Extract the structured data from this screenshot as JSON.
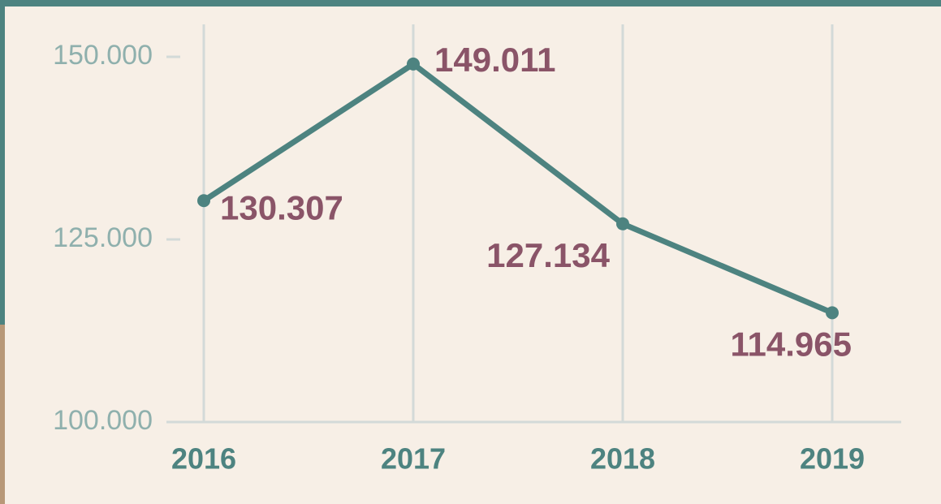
{
  "chart_data": {
    "type": "line",
    "categories": [
      "2016",
      "2017",
      "2018",
      "2019"
    ],
    "series": [
      {
        "color": "#4d8380",
        "values": [
          130307,
          149011,
          127134,
          114965
        ],
        "value_labels": [
          "130.307",
          "149.011",
          "127.134",
          "114.965"
        ]
      }
    ],
    "ylim": [
      100000,
      150000
    ],
    "yticks": [
      {
        "value": 100000,
        "label": "100.000"
      },
      {
        "value": 125000,
        "label": "125.000"
      },
      {
        "value": 150000,
        "label": "150.000"
      }
    ],
    "grid": true
  }
}
